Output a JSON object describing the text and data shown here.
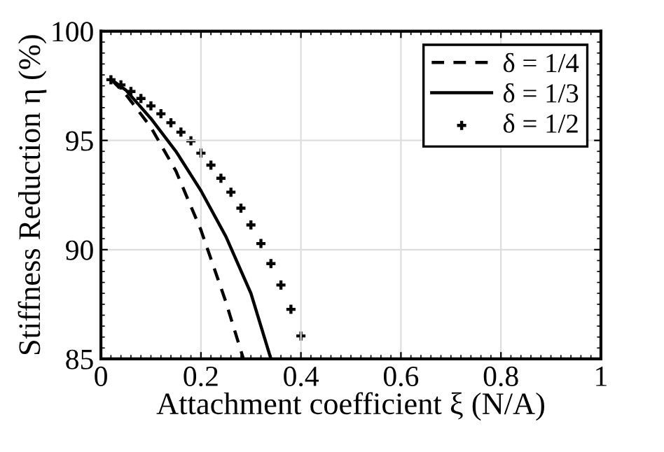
{
  "chart_data": {
    "type": "line",
    "xlabel": "Attachment coefficient ξ (N/A)",
    "ylabel": "Stiffness Reduction η (%)",
    "xlim": [
      0,
      1
    ],
    "ylim": [
      85,
      100
    ],
    "xticks": [
      0,
      0.2,
      0.4,
      0.6,
      0.8,
      1
    ],
    "yticks": [
      85,
      90,
      95,
      100
    ],
    "grid": true,
    "legend": "top right",
    "series": [
      {
        "name": "δ = 1/4",
        "color": "#000000",
        "line_style": "dashed",
        "marker": "none",
        "x": [
          0.02,
          0.05,
          0.1,
          0.15,
          0.2,
          0.25,
          0.285
        ],
        "values": [
          97.8,
          97.1,
          95.6,
          93.6,
          90.9,
          87.6,
          85
        ]
      },
      {
        "name": "δ = 1/3",
        "color": "#000000",
        "line_style": "solid",
        "marker": "none",
        "x": [
          0.02,
          0.05,
          0.1,
          0.15,
          0.2,
          0.25,
          0.3,
          0.34
        ],
        "values": [
          97.8,
          97.3,
          96.0,
          94.5,
          92.7,
          90.6,
          88.0,
          85.0
        ]
      },
      {
        "name": "δ = 1/2",
        "color": "#000000",
        "type": "scatter",
        "marker": "cross",
        "x": [
          0.02,
          0.04,
          0.06,
          0.08,
          0.1,
          0.12,
          0.14,
          0.16,
          0.18,
          0.2,
          0.22,
          0.24,
          0.26,
          0.28,
          0.3,
          0.32,
          0.34,
          0.36,
          0.38,
          0.4
        ],
        "values": [
          97.78,
          97.54,
          97.24,
          96.92,
          96.58,
          96.22,
          95.81,
          95.38,
          94.98,
          94.42,
          93.87,
          93.27,
          92.63,
          91.9,
          91.13,
          90.28,
          89.36,
          88.38,
          87.27,
          86.05
        ]
      }
    ]
  }
}
